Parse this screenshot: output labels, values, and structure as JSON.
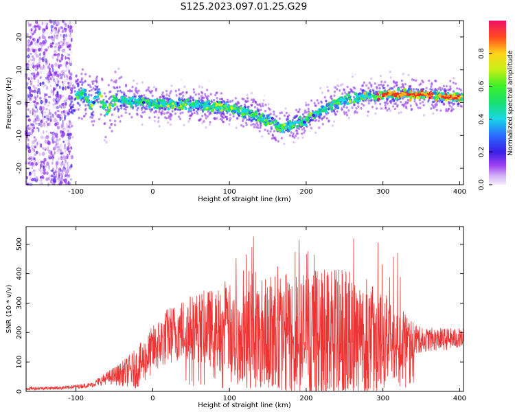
{
  "title": "S125.2023.097.01.25.G29",
  "chart_data": [
    {
      "type": "heatmap",
      "xlabel": "Height of straight line (km)",
      "ylabel": "Frequency (Hz)",
      "xlim": [
        -165,
        405
      ],
      "ylim": [
        -25,
        25
      ],
      "xticks": [
        -100,
        0,
        100,
        200,
        300,
        400
      ],
      "yticks": [
        -20,
        -10,
        0,
        10,
        20
      ],
      "colorbar": {
        "label": "Normalized spectral amplitude",
        "range": [
          0,
          1
        ],
        "ticks": [
          0.0,
          0.2,
          0.4,
          0.6,
          0.8
        ]
      },
      "ridge_frequency": {
        "x": [
          -110,
          -100,
          -90,
          -80,
          -70,
          -60,
          -50,
          0,
          50,
          100,
          130,
          150,
          170,
          200,
          230,
          260,
          300,
          350,
          400
        ],
        "y": [
          -3,
          2,
          3,
          -1,
          3,
          -3,
          1,
          -0.5,
          -0.5,
          -1.5,
          -3.5,
          -5.5,
          -7.5,
          -5,
          -1,
          1.5,
          2.5,
          2.5,
          1.5
        ]
      }
    },
    {
      "type": "line",
      "xlabel": "Height of straight line (km)",
      "ylabel": "SNR (10 * v/v)",
      "xlim": [
        -165,
        405
      ],
      "ylim": [
        0,
        560
      ],
      "xticks": [
        -100,
        0,
        100,
        200,
        300,
        400
      ],
      "yticks": [
        0,
        100,
        200,
        300,
        400,
        500
      ],
      "color": "#ee3333",
      "envelope": {
        "x": [
          -165,
          -120,
          -100,
          -80,
          -60,
          -40,
          -20,
          0,
          20,
          50,
          100,
          150,
          200,
          250,
          300,
          350,
          405
        ],
        "baseline": [
          10,
          12,
          16,
          22,
          45,
          60,
          80,
          140,
          190,
          220,
          210,
          200,
          190,
          180,
          170,
          175,
          180
        ],
        "noise": [
          4,
          4,
          5,
          6,
          15,
          30,
          50,
          60,
          70,
          80,
          110,
          140,
          160,
          170,
          120,
          30,
          25
        ],
        "peaks": [
          500,
          490,
          520,
          530,
          555,
          420
        ]
      }
    }
  ]
}
